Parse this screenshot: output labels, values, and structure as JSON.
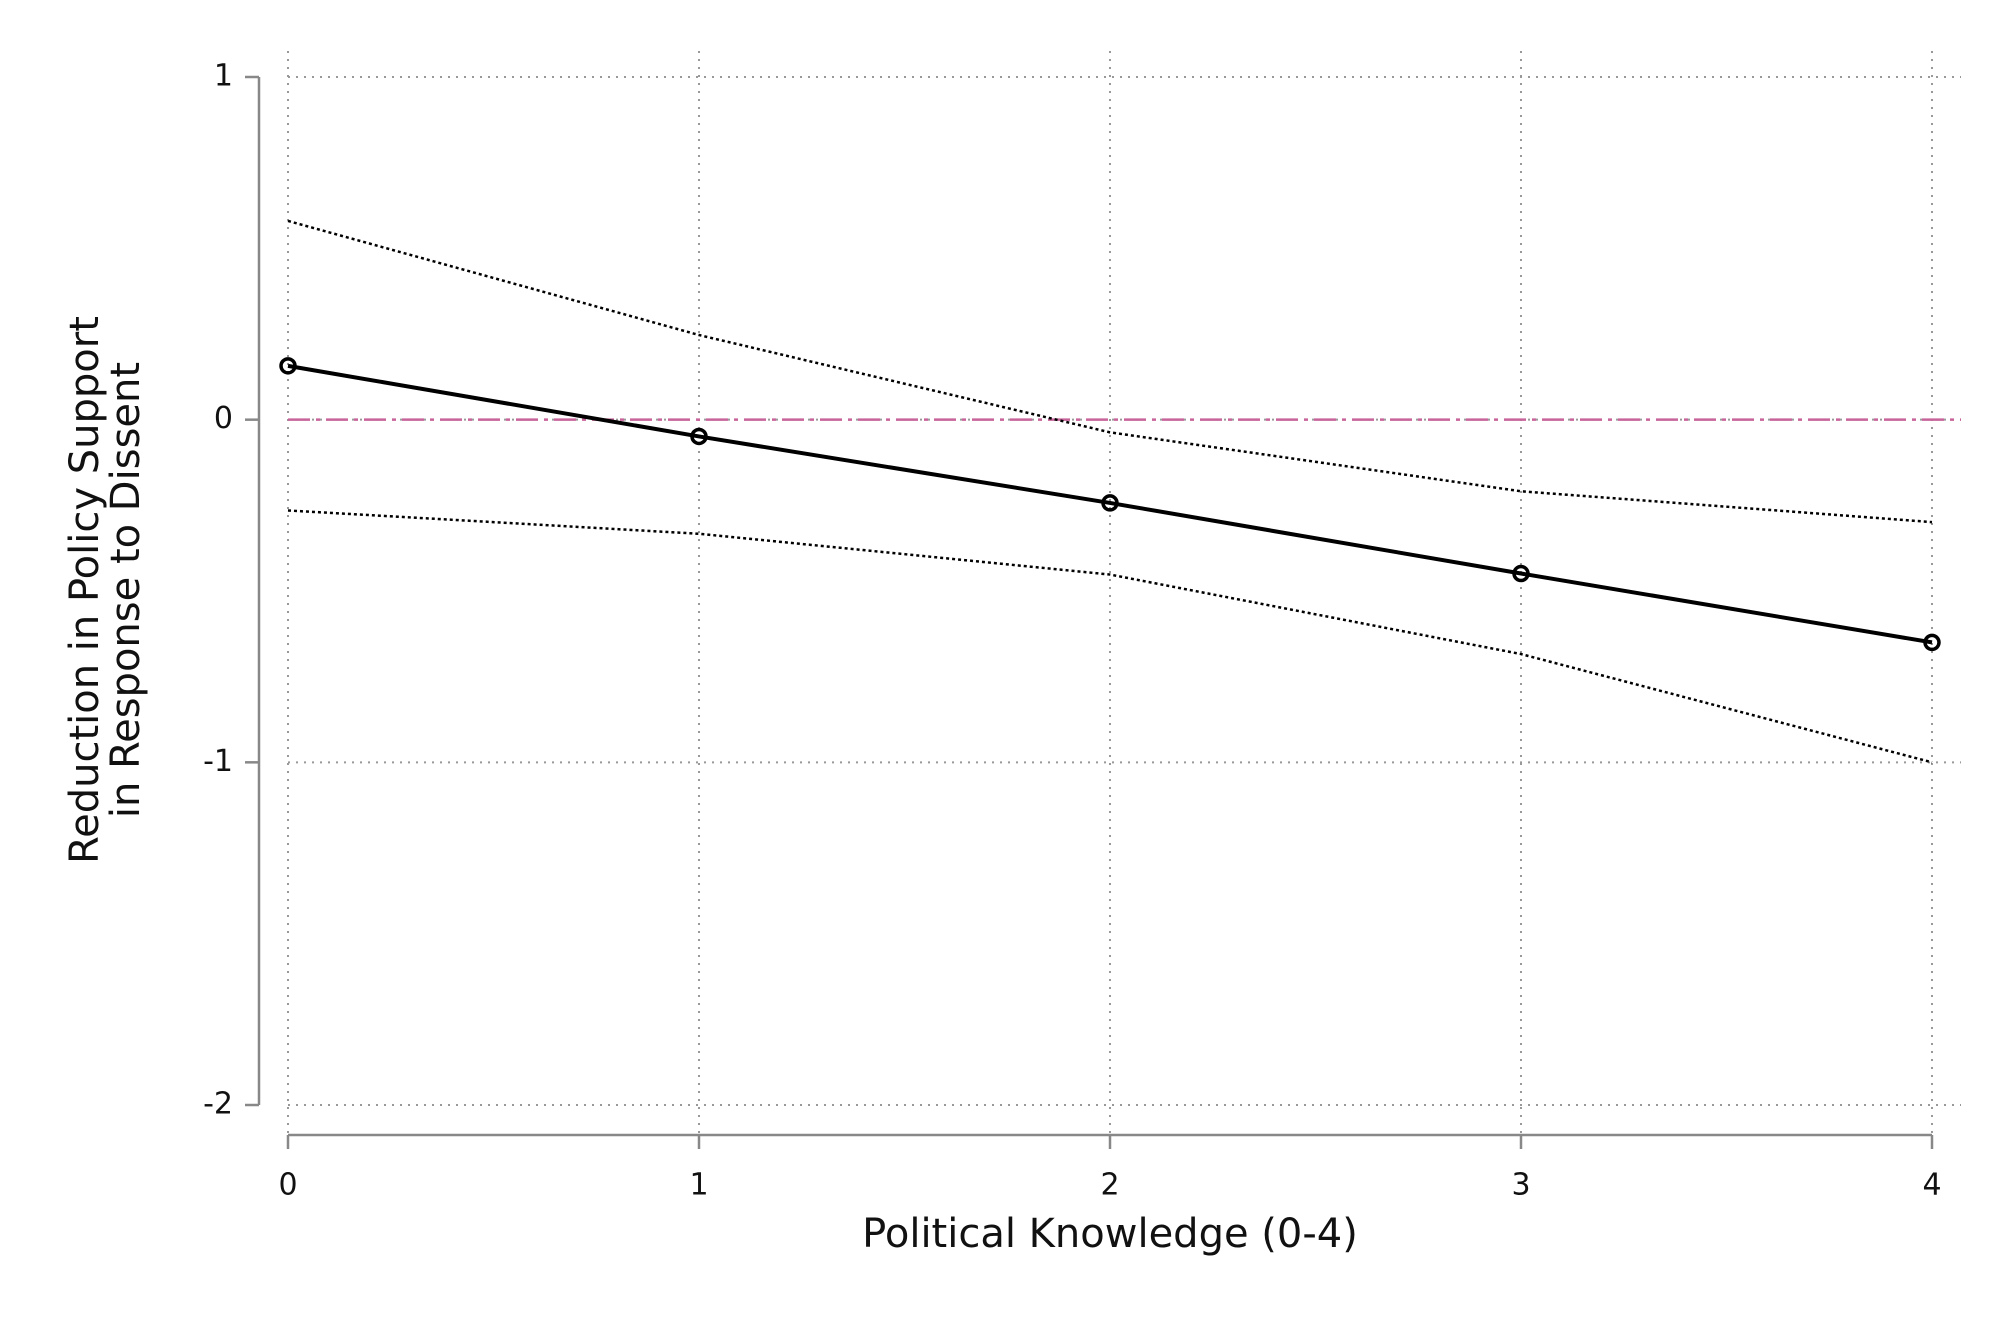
{
  "chart_data": {
    "type": "line",
    "x_label": "Political Knowledge (0-4)",
    "y_label": [
      "Reduction in Policy Support",
      "in Response to Dissent"
    ],
    "x": [
      0,
      1,
      2,
      3,
      4
    ],
    "values": [
      0.157,
      -0.049,
      -0.243,
      -0.449,
      -0.65
    ],
    "upper": [
      0.58,
      0.247,
      -0.037,
      -0.209,
      -0.299
    ],
    "lower": [
      -0.265,
      -0.333,
      -0.452,
      -0.684,
      -1.0
    ],
    "color": "#000000",
    "reference_line": {
      "value": 0,
      "color": "#c8649a"
    },
    "xlim": [
      0,
      4
    ],
    "ylim": [
      -2,
      1
    ],
    "xticks": [
      0,
      1,
      2,
      3,
      4
    ],
    "yticks": [
      -2,
      -1,
      0,
      1
    ],
    "grid": true
  }
}
